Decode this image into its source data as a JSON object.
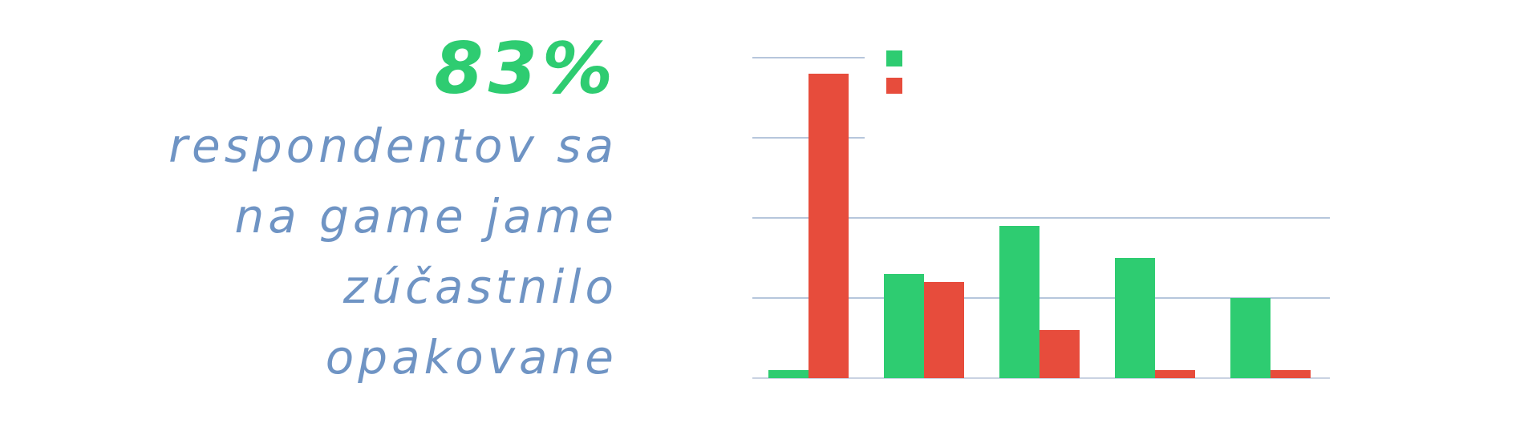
{
  "colors": {
    "accent_green": "#2ecc71",
    "accent_red": "#e74c3c",
    "caption_blue": "#6f94c4",
    "gridline": "#8aa3c8",
    "axis": "#b7c4d8"
  },
  "stat": {
    "percent": "83%",
    "caption_lines": [
      "respondentov sa",
      "na game jame",
      "zúčastnilo",
      "opakovane"
    ]
  },
  "chart_data": {
    "type": "bar",
    "title": "",
    "xlabel": "",
    "ylabel": "",
    "categories": [
      "",
      "",
      "",
      "",
      ""
    ],
    "ylim": [
      0,
      4
    ],
    "grid": true,
    "legend": "top-left",
    "series": [
      {
        "color": "#2ecc71",
        "values": [
          0.1,
          1.3,
          1.9,
          1.5,
          1.0
        ]
      },
      {
        "color": "#e74c3c",
        "values": [
          3.8,
          1.2,
          0.6,
          0.1,
          0.1
        ]
      }
    ]
  }
}
